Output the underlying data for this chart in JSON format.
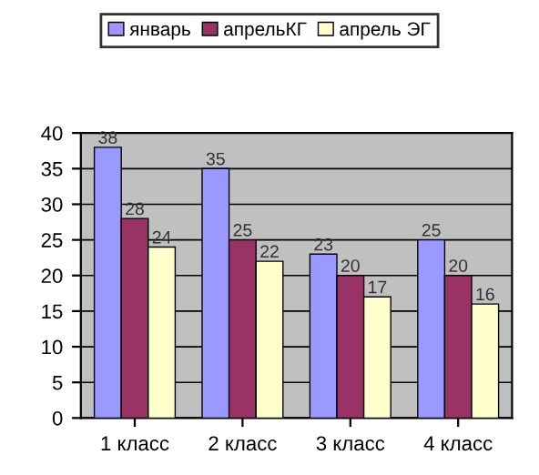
{
  "chart_data": {
    "type": "bar",
    "categories": [
      "1 класс",
      "2 класс",
      "3 класс",
      "4 класс"
    ],
    "series": [
      {
        "name": "январь",
        "color": "#9999ff",
        "values": [
          38,
          35,
          23,
          25
        ]
      },
      {
        "name": "апрельКГ",
        "color": "#993366",
        "values": [
          28,
          25,
          20,
          20
        ]
      },
      {
        "name": "апрель ЭГ",
        "color": "#ffffcc",
        "values": [
          24,
          22,
          17,
          16
        ]
      }
    ],
    "ylim": [
      0,
      40
    ],
    "yticks": [
      0,
      5,
      10,
      15,
      20,
      25,
      30,
      35,
      40
    ],
    "grid": "y",
    "legend": "top",
    "data_labels": true
  }
}
